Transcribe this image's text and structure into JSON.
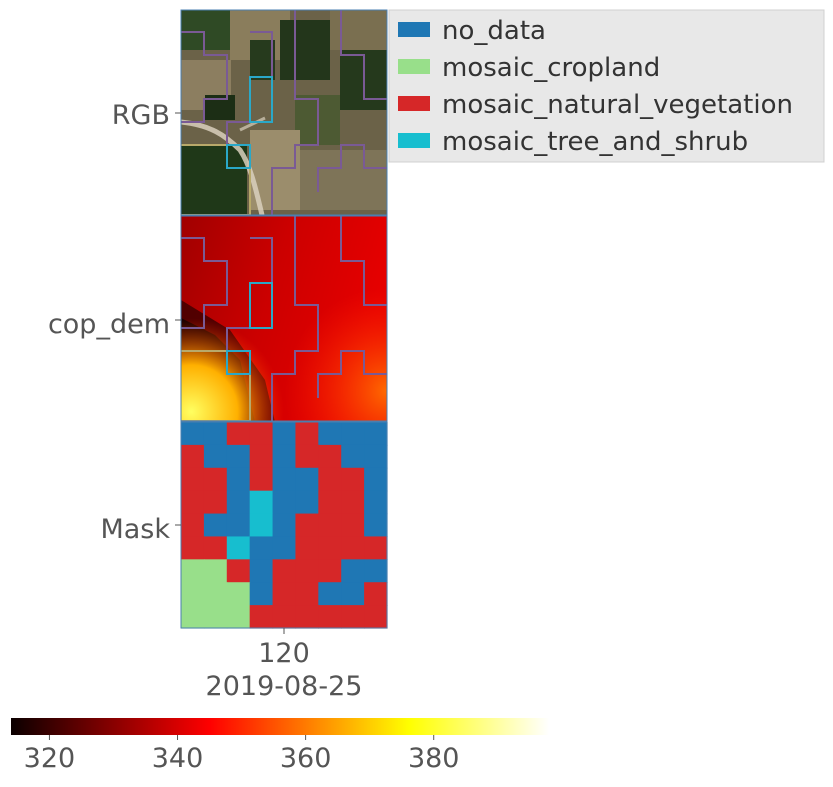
{
  "chart_data": {
    "type": "heatmap",
    "title": "",
    "rows": [
      "RGB",
      "cop_dem",
      "Mask"
    ],
    "x_tick": "120",
    "x_label": "2019-08-25",
    "legend": {
      "placement": "top-right",
      "entries": [
        {
          "label": "no_data",
          "color": "#1f77b4"
        },
        {
          "label": "mosaic_cropland",
          "color": "#98df8a"
        },
        {
          "label": "mosaic_natural_vegetation",
          "color": "#d62728"
        },
        {
          "label": "mosaic_tree_and_shrub",
          "color": "#17becf"
        }
      ]
    },
    "colorbar": {
      "colormap": "hot",
      "range": [
        314,
        398
      ],
      "ticks": [
        "320",
        "340",
        "360",
        "380"
      ]
    },
    "mask_grid": [
      [
        0,
        0,
        2,
        2,
        0,
        2,
        0,
        0,
        0
      ],
      [
        2,
        0,
        0,
        2,
        0,
        2,
        2,
        0,
        0
      ],
      [
        2,
        2,
        0,
        2,
        0,
        0,
        2,
        2,
        0
      ],
      [
        2,
        2,
        0,
        3,
        0,
        0,
        2,
        2,
        0
      ],
      [
        2,
        0,
        0,
        3,
        0,
        2,
        2,
        2,
        0
      ],
      [
        2,
        2,
        3,
        0,
        0,
        2,
        2,
        2,
        2
      ],
      [
        1,
        1,
        2,
        0,
        2,
        2,
        2,
        0,
        0
      ],
      [
        1,
        1,
        1,
        0,
        2,
        2,
        0,
        0,
        2
      ],
      [
        1,
        1,
        1,
        2,
        2,
        2,
        2,
        2,
        2
      ]
    ]
  }
}
